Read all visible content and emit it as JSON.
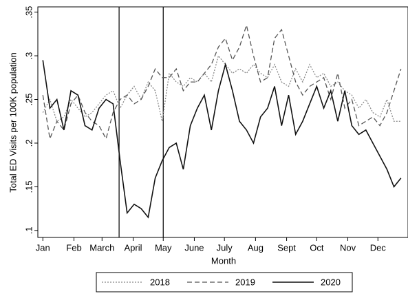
{
  "chart_data": {
    "type": "line",
    "x_label": "Month",
    "y_label": "Total ED Visits per 100K population",
    "x": [
      1,
      8,
      15,
      22,
      29,
      36,
      43,
      50,
      57,
      64,
      71,
      78,
      85,
      92,
      99,
      106,
      113,
      120,
      127,
      134,
      141,
      148,
      155,
      162,
      169,
      176,
      183,
      190,
      197,
      204,
      211,
      218,
      225,
      232,
      239,
      246,
      253,
      260,
      267,
      274,
      281,
      288,
      295,
      302,
      309,
      316,
      323,
      330,
      337,
      344,
      351,
      358
    ],
    "xlim": [
      -4,
      365
    ],
    "xticks": [
      {
        "value": 1,
        "label": "Jan"
      },
      {
        "value": 32,
        "label": "Feb"
      },
      {
        "value": 60,
        "label": "March"
      },
      {
        "value": 91,
        "label": "April"
      },
      {
        "value": 121,
        "label": "May"
      },
      {
        "value": 152,
        "label": "June"
      },
      {
        "value": 182,
        "label": "July"
      },
      {
        "value": 213,
        "label": "Aug"
      },
      {
        "value": 244,
        "label": "Sept"
      },
      {
        "value": 274,
        "label": "Oct"
      },
      {
        "value": 305,
        "label": "Nov"
      },
      {
        "value": 335,
        "label": "Dec"
      }
    ],
    "ylim": [
      0.092,
      0.356
    ],
    "yticks": [
      {
        "value": 0.1,
        "label": ".1"
      },
      {
        "value": 0.15,
        "label": ".15"
      },
      {
        "value": 0.2,
        "label": ".2"
      },
      {
        "value": 0.25,
        "label": ".25"
      },
      {
        "value": 0.3,
        "label": ".3"
      },
      {
        "value": 0.35,
        "label": ".35"
      }
    ],
    "vlines": [
      77,
      121
    ],
    "legend": "bottom",
    "series": [
      {
        "name": "2018",
        "color": "#888888",
        "dash": "2 2",
        "values": [
          0.235,
          0.25,
          0.225,
          0.23,
          0.25,
          0.24,
          0.23,
          0.235,
          0.245,
          0.255,
          0.26,
          0.24,
          0.255,
          0.265,
          0.25,
          0.27,
          0.26,
          0.225,
          0.28,
          0.27,
          0.265,
          0.275,
          0.27,
          0.28,
          0.27,
          0.3,
          0.29,
          0.28,
          0.285,
          0.28,
          0.29,
          0.28,
          0.275,
          0.29,
          0.27,
          0.265,
          0.285,
          0.27,
          0.29,
          0.275,
          0.28,
          0.265,
          0.27,
          0.26,
          0.255,
          0.24,
          0.25,
          0.235,
          0.23,
          0.25,
          0.225,
          0.225
        ]
      },
      {
        "name": "2019",
        "color": "#555555",
        "dash": "7 4",
        "values": [
          0.255,
          0.205,
          0.225,
          0.215,
          0.245,
          0.255,
          0.235,
          0.225,
          0.22,
          0.205,
          0.235,
          0.25,
          0.255,
          0.245,
          0.25,
          0.265,
          0.285,
          0.275,
          0.275,
          0.285,
          0.26,
          0.27,
          0.27,
          0.28,
          0.29,
          0.31,
          0.32,
          0.295,
          0.31,
          0.335,
          0.3,
          0.27,
          0.275,
          0.32,
          0.33,
          0.3,
          0.27,
          0.255,
          0.265,
          0.27,
          0.275,
          0.25,
          0.28,
          0.24,
          0.25,
          0.22,
          0.225,
          0.23,
          0.22,
          0.235,
          0.26,
          0.285
        ]
      },
      {
        "name": "2020",
        "color": "#111111",
        "dash": "none",
        "values": [
          0.295,
          0.24,
          0.25,
          0.215,
          0.26,
          0.255,
          0.22,
          0.215,
          0.24,
          0.25,
          0.245,
          0.18,
          0.12,
          0.13,
          0.125,
          0.115,
          0.16,
          0.18,
          0.195,
          0.2,
          0.17,
          0.22,
          0.24,
          0.255,
          0.215,
          0.26,
          0.29,
          0.26,
          0.225,
          0.215,
          0.2,
          0.23,
          0.24,
          0.265,
          0.22,
          0.255,
          0.21,
          0.225,
          0.245,
          0.265,
          0.24,
          0.26,
          0.225,
          0.26,
          0.22,
          0.21,
          0.215,
          0.2,
          0.185,
          0.17,
          0.15,
          0.16
        ]
      }
    ]
  }
}
